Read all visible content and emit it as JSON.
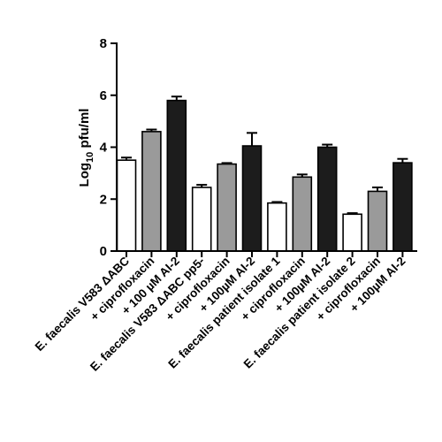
{
  "chart_data": {
    "type": "bar",
    "title": "",
    "xlabel": "",
    "ylabel": {
      "prefix": "Log",
      "subscript": "10",
      "suffix": " pfu/ml"
    },
    "ylim": [
      0,
      8
    ],
    "yticks": [
      0,
      2,
      4,
      6,
      8
    ],
    "categories": [
      "E. faecalis V583 ΔABC",
      "+ ciprofloxacin",
      "+ 100 µM AI-2",
      "E. faecalis V583 ΔABC pp5-",
      "+ ciprofloxacin",
      "+ 100µM AI-2",
      "E. faecalis patient isolate 1",
      "+ ciprofloxacin",
      "+ 100µM AI-2",
      "E. faecalis patient isolate 2",
      "+ ciprofloxacin",
      "+ 100µM AI-2"
    ],
    "values": [
      3.5,
      4.6,
      5.8,
      2.45,
      3.35,
      4.05,
      1.85,
      2.85,
      4.0,
      1.42,
      2.3,
      3.4
    ],
    "errors": [
      0.1,
      0.08,
      0.15,
      0.1,
      0.04,
      0.5,
      0.04,
      0.1,
      0.1,
      0.04,
      0.15,
      0.15
    ],
    "fills": [
      "#ffffff",
      "#9a9a9a",
      "#1c1c1c",
      "#ffffff",
      "#9a9a9a",
      "#1c1c1c",
      "#ffffff",
      "#9a9a9a",
      "#1c1c1c",
      "#ffffff",
      "#9a9a9a",
      "#1c1c1c"
    ],
    "grid": false,
    "legend": "none"
  }
}
